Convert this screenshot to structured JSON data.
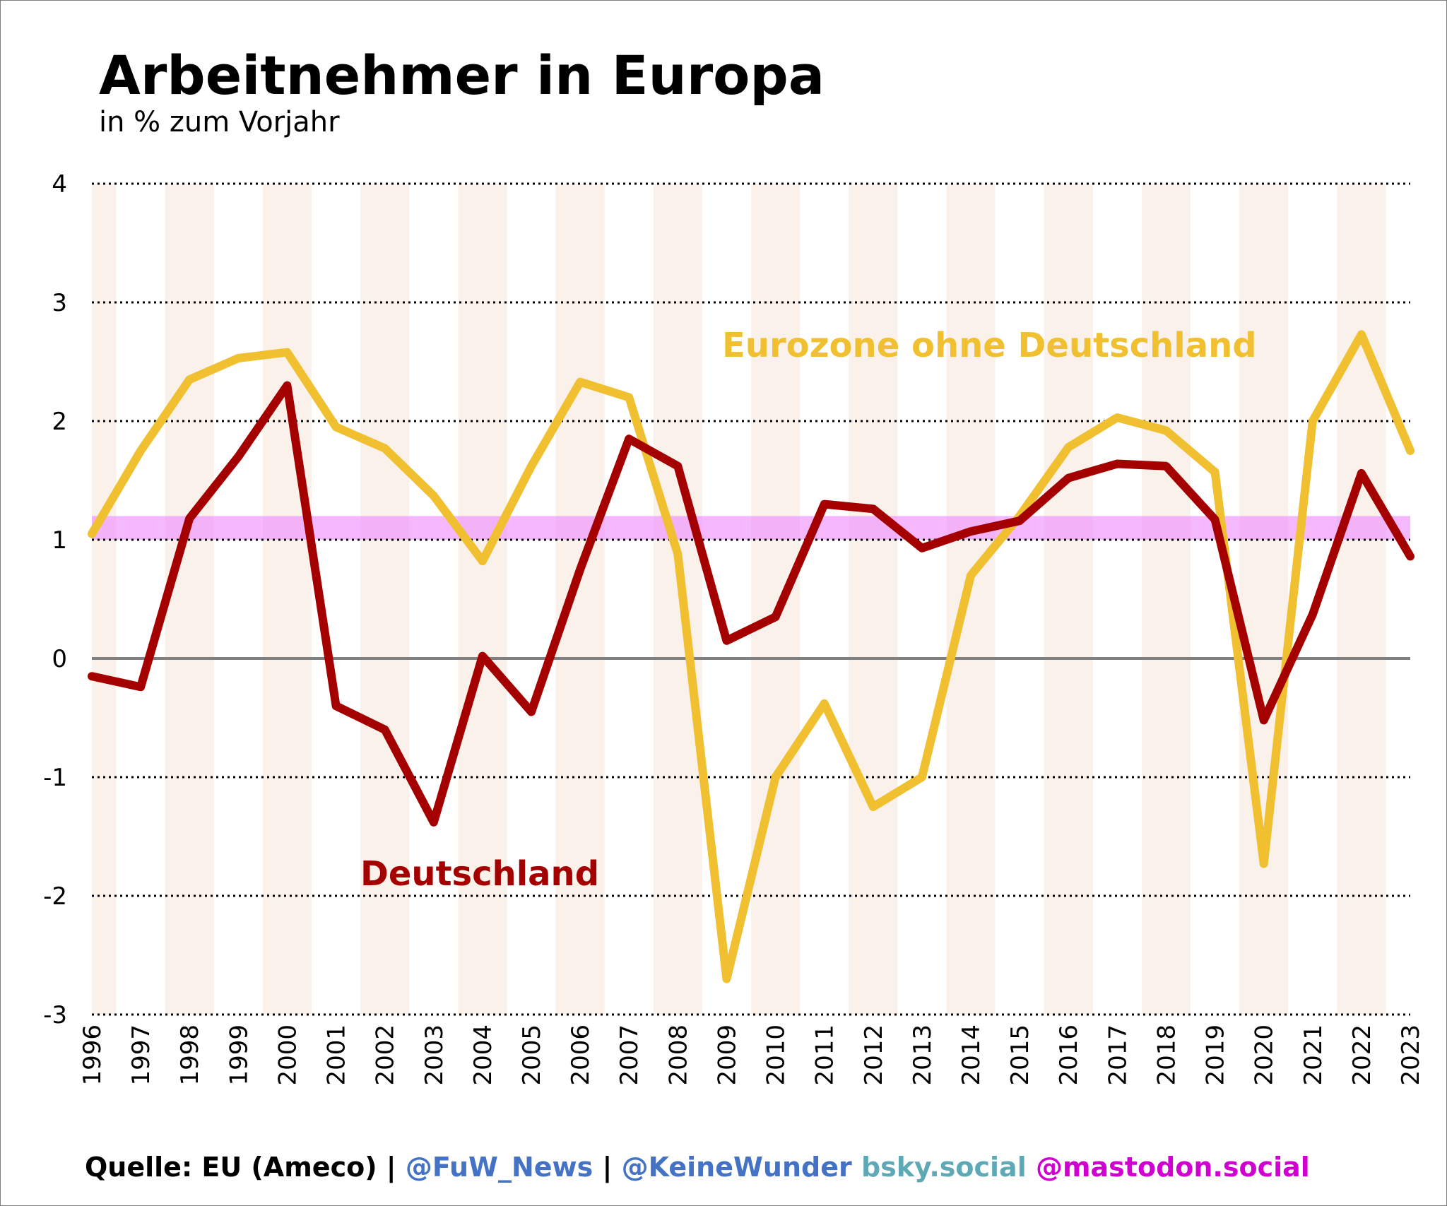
{
  "header": {
    "title": "Arbeitnehmer in Europa",
    "subtitle": "in % zum Vorjahr"
  },
  "footer": {
    "source": "Quelle: EU (Ameco) | ",
    "handle1": "@FuW_News",
    "sep": " | ",
    "handle2": "@KeineWunder",
    "bsky": " bsky.social",
    "mastodon": " @mastodon.social"
  },
  "colors": {
    "deutschland": "#a50000",
    "eurozone": "#f0c030",
    "band": "#ee88ff",
    "stripe": "#faf1ea",
    "zero_line": "#808080",
    "grid": "#000000"
  },
  "chart_data": {
    "type": "line",
    "title": "Arbeitnehmer in Europa",
    "subtitle": "in % zum Vorjahr",
    "xlabel": "",
    "ylabel": "",
    "ylim": [
      -3,
      4
    ],
    "yticks": [
      "4",
      "3",
      "2",
      "1",
      "0",
      "-1",
      "-2",
      "-3"
    ],
    "grid": true,
    "categories": [
      "1996",
      "1997",
      "1998",
      "1999",
      "2000",
      "2001",
      "2002",
      "2003",
      "2004",
      "2005",
      "2006",
      "2007",
      "2008",
      "2009",
      "2010",
      "2011",
      "2012",
      "2013",
      "2014",
      "2015",
      "2016",
      "2017",
      "2018",
      "2019",
      "2020",
      "2021",
      "2022",
      "2023"
    ],
    "band": {
      "from": 1.0,
      "to": 1.2
    },
    "series": [
      {
        "name": "Eurozone ohne Deutschland",
        "color": "#f0c030",
        "values": [
          1.05,
          1.75,
          2.35,
          2.53,
          2.58,
          1.95,
          1.77,
          1.37,
          0.82,
          1.62,
          2.33,
          2.2,
          0.88,
          -2.7,
          -1.0,
          -0.38,
          -1.25,
          -1.0,
          0.7,
          1.2,
          1.78,
          2.03,
          1.92,
          1.57,
          -1.73,
          2.0,
          2.73,
          1.75
        ]
      },
      {
        "name": "Deutschland",
        "color": "#a50000",
        "values": [
          -0.15,
          -0.24,
          1.18,
          1.7,
          2.3,
          -0.4,
          -0.6,
          -1.38,
          0.02,
          -0.45,
          0.75,
          1.85,
          1.62,
          0.15,
          0.35,
          1.3,
          1.26,
          0.93,
          1.07,
          1.16,
          1.52,
          1.64,
          1.62,
          1.17,
          -0.52,
          0.37,
          1.56,
          0.86
        ]
      }
    ],
    "annotations": [
      "Eurozone ohne Deutschland",
      "Deutschland"
    ]
  }
}
